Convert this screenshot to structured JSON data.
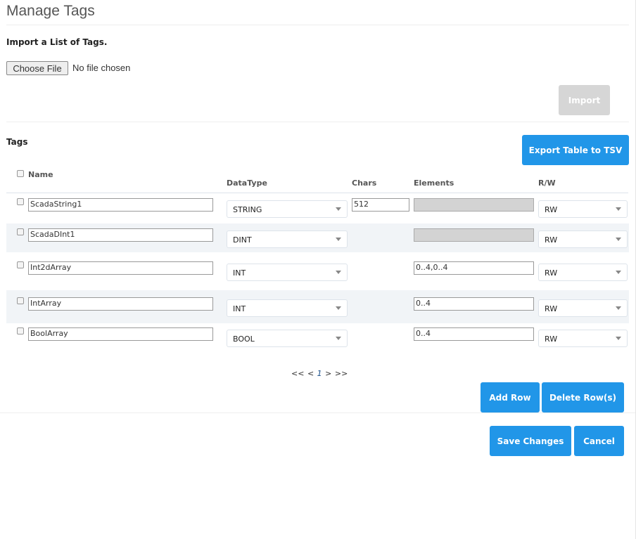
{
  "page": {
    "title": "Manage Tags"
  },
  "import": {
    "heading": "Import a List of Tags.",
    "choose_file": "Choose File",
    "no_file": "No file chosen",
    "import_button": "Import"
  },
  "tags": {
    "heading": "Tags",
    "export_button": "Export Table to TSV",
    "columns": {
      "name": "Name",
      "datatype": "DataType",
      "chars": "Chars",
      "elements": "Elements",
      "rw": "R/W"
    },
    "rows": [
      {
        "name": "ScadaString1",
        "datatype": "STRING",
        "chars": "512",
        "elements": "",
        "elements_disabled": true,
        "rw": "RW"
      },
      {
        "name": "ScadaDInt1",
        "datatype": "DINT",
        "chars": null,
        "elements": "",
        "elements_disabled": true,
        "rw": "RW"
      },
      {
        "name": "Int2dArray",
        "datatype": "INT",
        "chars": null,
        "elements": "0..4,0..4",
        "elements_disabled": false,
        "rw": "RW"
      },
      {
        "name": "IntArray",
        "datatype": "INT",
        "chars": null,
        "elements": "0..4",
        "elements_disabled": false,
        "rw": "RW"
      },
      {
        "name": "BoolArray",
        "datatype": "BOOL",
        "chars": null,
        "elements": "0..4",
        "elements_disabled": false,
        "rw": "RW"
      }
    ]
  },
  "pagination": {
    "first": "<<",
    "prev": "<",
    "current": "1",
    "next": ">",
    "last": ">>"
  },
  "actions": {
    "add_row": "Add Row",
    "delete_rows": "Delete Row(s)",
    "save": "Save Changes",
    "cancel": "Cancel"
  },
  "colors": {
    "accent": "#2196e8",
    "disabled": "#d6d6d6",
    "row_alt": "#f1f4f7"
  }
}
